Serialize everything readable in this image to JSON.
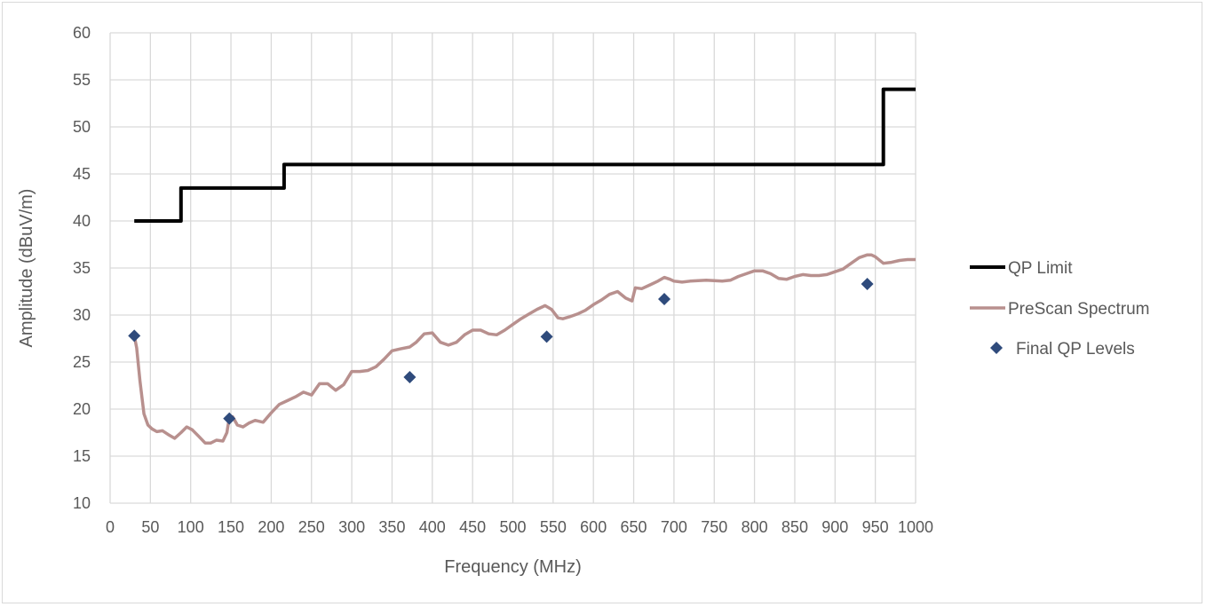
{
  "chart_data": {
    "type": "line",
    "title": "",
    "xlabel": "Frequency (MHz)",
    "ylabel": "Amplitude (dBuV/m)",
    "xlim": [
      0,
      1000
    ],
    "ylim": [
      10,
      60
    ],
    "x_ticks": [
      0,
      50,
      100,
      150,
      200,
      250,
      300,
      350,
      400,
      450,
      500,
      550,
      600,
      650,
      700,
      750,
      800,
      850,
      900,
      950,
      1000
    ],
    "x_tick_labels": [
      "0",
      "50",
      "100",
      "150",
      "200",
      "250",
      "300",
      "350",
      "400",
      "450",
      "500",
      "550",
      "600",
      "650",
      "700",
      "750",
      "800",
      "850",
      "900",
      "950",
      "1000"
    ],
    "y_ticks": [
      10,
      15,
      20,
      25,
      30,
      35,
      40,
      45,
      50,
      55,
      60
    ],
    "y_tick_labels": [
      "10",
      "15",
      "20",
      "25",
      "30",
      "35",
      "40",
      "45",
      "50",
      "55",
      "60"
    ],
    "grid": true,
    "legend_position": "right",
    "series": [
      {
        "name": "QP Limit",
        "kind": "step-line",
        "color": "#000000",
        "x": [
          30,
          88,
          88,
          216,
          216,
          960,
          960,
          1000
        ],
        "y": [
          40,
          40,
          43.5,
          43.5,
          46,
          46,
          54,
          54
        ]
      },
      {
        "name": "PreScan Spectrum",
        "kind": "line",
        "color": "#b8908e",
        "x": [
          30,
          33,
          37,
          42,
          47,
          52,
          58,
          65,
          72,
          80,
          88,
          95,
          102,
          110,
          118,
          125,
          132,
          140,
          145,
          148,
          152,
          158,
          165,
          172,
          180,
          190,
          200,
          210,
          220,
          230,
          240,
          250,
          260,
          270,
          280,
          290,
          300,
          310,
          320,
          330,
          340,
          350,
          360,
          372,
          380,
          390,
          400,
          410,
          420,
          430,
          440,
          450,
          460,
          470,
          480,
          490,
          500,
          510,
          520,
          530,
          540,
          548,
          556,
          562,
          570,
          580,
          590,
          600,
          610,
          620,
          630,
          640,
          648,
          652,
          660,
          670,
          680,
          688,
          695,
          700,
          710,
          720,
          740,
          760,
          770,
          780,
          790,
          800,
          810,
          820,
          830,
          840,
          850,
          860,
          870,
          880,
          890,
          900,
          910,
          920,
          930,
          940,
          945,
          950,
          960,
          970,
          980,
          990,
          1000
        ],
        "y": [
          27.8,
          26.5,
          23,
          19.5,
          18.3,
          17.9,
          17.6,
          17.7,
          17.3,
          16.9,
          17.5,
          18.1,
          17.8,
          17.1,
          16.4,
          16.4,
          16.7,
          16.6,
          17.5,
          19.1,
          19.2,
          18.3,
          18.1,
          18.5,
          18.8,
          18.6,
          19.6,
          20.5,
          20.9,
          21.3,
          21.8,
          21.5,
          22.7,
          22.7,
          22.0,
          22.6,
          24.0,
          24.0,
          24.1,
          24.5,
          25.3,
          26.2,
          26.4,
          26.6,
          27.1,
          28.0,
          28.1,
          27.1,
          26.8,
          27.1,
          27.9,
          28.4,
          28.4,
          28.0,
          27.9,
          28.4,
          29.0,
          29.6,
          30.1,
          30.6,
          31.0,
          30.6,
          29.7,
          29.6,
          29.8,
          30.1,
          30.5,
          31.1,
          31.6,
          32.2,
          32.5,
          31.8,
          31.5,
          32.9,
          32.8,
          33.2,
          33.6,
          34.0,
          33.8,
          33.6,
          33.5,
          33.6,
          33.7,
          33.6,
          33.7,
          34.1,
          34.4,
          34.7,
          34.7,
          34.4,
          33.9,
          33.8,
          34.1,
          34.3,
          34.2,
          34.2,
          34.3,
          34.6,
          34.9,
          35.5,
          36.1,
          36.4,
          36.4,
          36.2,
          35.5,
          35.6,
          35.8,
          35.9,
          35.9
        ]
      },
      {
        "name": "Final QP Levels",
        "kind": "scatter",
        "marker": "diamond",
        "color": "#2f4b7c",
        "x": [
          30,
          148,
          372,
          542,
          688,
          940
        ],
        "y": [
          27.8,
          19.0,
          23.4,
          27.7,
          31.7,
          33.3
        ]
      }
    ]
  }
}
